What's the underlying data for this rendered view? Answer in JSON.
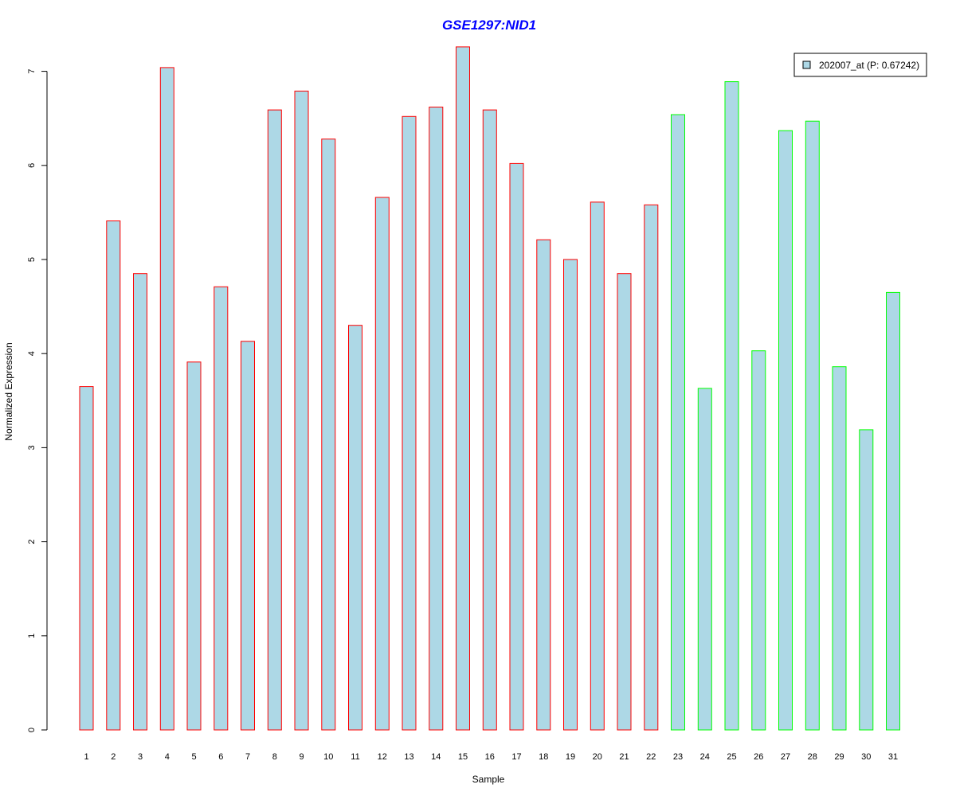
{
  "chart_data": {
    "type": "bar",
    "title": "GSE1297:NID1",
    "xlabel": "Sample",
    "ylabel": "Normalized Expression",
    "ylim": [
      0,
      7
    ],
    "y_ticks": [
      "0",
      "1",
      "2",
      "3",
      "4",
      "5",
      "6",
      "7"
    ],
    "grid": false,
    "legend_position": "top-right",
    "categories": [
      "1",
      "2",
      "3",
      "4",
      "5",
      "6",
      "7",
      "8",
      "9",
      "10",
      "11",
      "12",
      "13",
      "14",
      "15",
      "16",
      "17",
      "18",
      "19",
      "20",
      "21",
      "22",
      "23",
      "24",
      "25",
      "26",
      "27",
      "28",
      "29",
      "30",
      "31"
    ],
    "series": [
      {
        "name": "202007_at (P: 0.67242)",
        "fill_color": "#add8e6",
        "values": [
          3.65,
          5.41,
          4.85,
          7.04,
          3.91,
          4.71,
          4.13,
          6.59,
          6.79,
          6.28,
          4.3,
          5.66,
          6.52,
          6.62,
          7.26,
          6.59,
          6.02,
          5.21,
          5.0,
          5.61,
          4.85,
          5.58,
          6.54,
          3.63,
          6.89,
          4.03,
          6.37,
          6.47,
          3.86,
          3.19,
          4.65
        ],
        "groups": [
          "red",
          "red",
          "red",
          "red",
          "red",
          "red",
          "red",
          "red",
          "red",
          "red",
          "red",
          "red",
          "red",
          "red",
          "red",
          "red",
          "red",
          "red",
          "red",
          "red",
          "red",
          "red",
          "green",
          "green",
          "green",
          "green",
          "green",
          "green",
          "green",
          "green",
          "green"
        ]
      }
    ],
    "group_colors": {
      "red": "#ff0000",
      "green": "#00ff00"
    }
  }
}
